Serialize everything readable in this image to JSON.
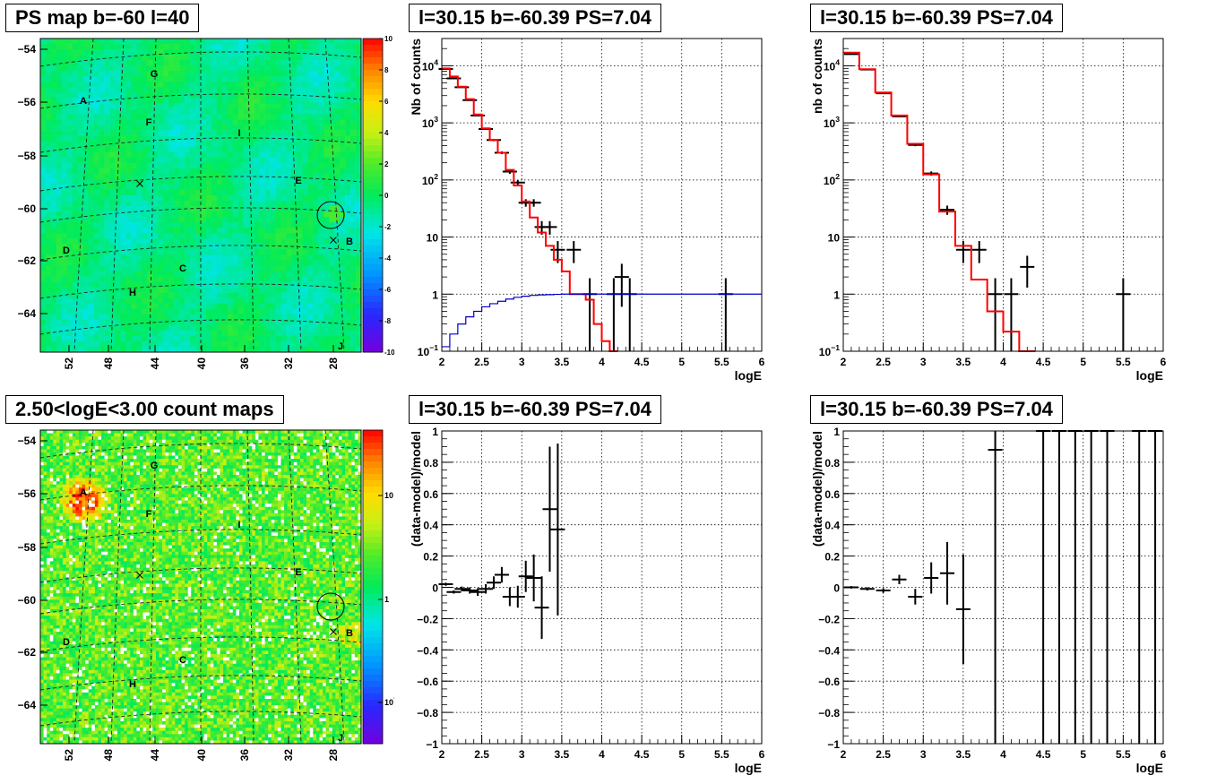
{
  "maps": [
    {
      "title": "PS map b=-60 l=40",
      "yticks": [
        "-54",
        "-56",
        "-58",
        "-60",
        "-62",
        "-64"
      ],
      "xticks": [
        "52",
        "48",
        "44",
        "40",
        "36",
        "32",
        "28"
      ],
      "labels": [
        "A",
        "B",
        "C",
        "D",
        "E",
        "F",
        "G",
        "H",
        "I",
        "J"
      ],
      "colorbar": [
        "10",
        "8",
        "6",
        "4",
        "2",
        "0",
        "-2",
        "-4",
        "-6",
        "-8",
        "-10"
      ],
      "scale": "linear"
    },
    {
      "title": "2.50<logE<3.00 count maps",
      "yticks": [
        "-54",
        "-56",
        "-58",
        "-60",
        "-62",
        "-64"
      ],
      "xticks": [
        "52",
        "48",
        "44",
        "40",
        "36",
        "32",
        "28"
      ],
      "labels": [
        "A",
        "B",
        "C",
        "D",
        "E",
        "F",
        "G",
        "H",
        "I",
        "J"
      ],
      "colorbar": [
        "10",
        "1",
        "10^-1"
      ],
      "scale": "log"
    }
  ],
  "chart_data": [
    {
      "type": "line",
      "title": "l=30.15 b=-60.39 PS=7.04",
      "xlabel": "logE",
      "ylabel": "Nb of counts",
      "ylog": true,
      "xlim": [
        2,
        6
      ],
      "ylim": [
        0.1,
        30000
      ],
      "xticks": [
        "2",
        "2.5",
        "3",
        "3.5",
        "4",
        "4.5",
        "5",
        "5.5",
        "6"
      ],
      "yticks": [
        "10^-1",
        "1",
        "10",
        "10^2",
        "10^3",
        "10^4"
      ],
      "grid": true,
      "series": [
        {
          "color": "#000000",
          "style": "errorbar",
          "x": [
            2.05,
            2.15,
            2.25,
            2.35,
            2.45,
            2.55,
            2.65,
            2.75,
            2.85,
            2.95,
            3.05,
            3.15,
            3.25,
            3.35,
            3.45,
            3.65,
            3.85,
            4.15,
            4.25,
            4.35,
            5.55
          ],
          "y": [
            8800,
            6000,
            4200,
            2500,
            1350,
            780,
            500,
            300,
            140,
            90,
            40,
            40,
            15,
            15,
            6,
            6,
            1,
            1,
            2,
            1,
            1
          ],
          "yerr_lo": [
            90,
            80,
            65,
            50,
            35,
            28,
            22,
            17,
            12,
            9,
            6,
            6,
            4,
            4,
            2.5,
            2.5,
            0.9,
            0.9,
            1.4,
            0.9,
            0.9
          ],
          "yerr_hi": [
            90,
            80,
            65,
            50,
            35,
            28,
            22,
            17,
            12,
            9,
            6,
            6,
            4,
            4,
            2.5,
            2.5,
            0.9,
            0.9,
            1.4,
            0.9,
            0.9
          ]
        },
        {
          "color": "#ff0000",
          "style": "step",
          "edges": [
            2.0,
            2.1,
            2.2,
            2.3,
            2.4,
            2.5,
            2.6,
            2.7,
            2.8,
            2.9,
            3.0,
            3.1,
            3.2,
            3.3,
            3.4,
            3.5,
            3.6,
            3.7,
            3.8,
            3.9,
            4.0,
            4.1,
            4.2
          ],
          "values": [
            9000,
            6500,
            4300,
            2600,
            1400,
            800,
            500,
            300,
            150,
            80,
            42,
            22,
            12,
            7,
            4,
            2.5,
            1,
            1,
            0.8,
            0.3,
            0.15,
            0.1
          ]
        },
        {
          "color": "#0000cc",
          "style": "step",
          "edges": [
            2.0,
            2.1,
            2.2,
            2.3,
            2.4,
            2.5,
            2.6,
            2.7,
            2.8,
            2.9,
            3.0,
            3.1,
            3.2,
            3.3,
            3.4,
            3.5,
            6.0
          ],
          "values": [
            0.12,
            0.2,
            0.3,
            0.4,
            0.5,
            0.6,
            0.68,
            0.75,
            0.82,
            0.88,
            0.92,
            0.95,
            0.97,
            0.98,
            0.99,
            1.0
          ]
        }
      ]
    },
    {
      "type": "line",
      "title": "l=30.15 b=-60.39 PS=7.04",
      "xlabel": "logE",
      "ylabel": "nb of counts",
      "ylog": true,
      "xlim": [
        2,
        6
      ],
      "ylim": [
        0.1,
        30000
      ],
      "xticks": [
        "2",
        "2.5",
        "3",
        "3.5",
        "4",
        "4.5",
        "5",
        "5.5",
        "6"
      ],
      "yticks": [
        "10^-1",
        "1",
        "10",
        "10^2",
        "10^3",
        "10^4"
      ],
      "grid": true,
      "series": [
        {
          "color": "#000000",
          "style": "errorbar",
          "x": [
            2.1,
            2.3,
            2.5,
            2.7,
            2.9,
            3.1,
            3.3,
            3.5,
            3.7,
            3.9,
            4.1,
            4.3,
            5.5
          ],
          "y": [
            16000,
            8600,
            3300,
            1300,
            410,
            130,
            30,
            6,
            6,
            1,
            1,
            3,
            1
          ],
          "yerr_lo": [
            126,
            93,
            57,
            36,
            20,
            11,
            5.5,
            2.5,
            2.5,
            0.9,
            0.9,
            1.7,
            0.9
          ],
          "yerr_hi": [
            126,
            93,
            57,
            36,
            20,
            11,
            5.5,
            2.5,
            2.5,
            0.9,
            0.9,
            1.7,
            0.9
          ]
        },
        {
          "color": "#ff0000",
          "style": "step",
          "edges": [
            2.0,
            2.2,
            2.4,
            2.6,
            2.8,
            3.0,
            3.2,
            3.4,
            3.6,
            3.8,
            4.0,
            4.2,
            4.4
          ],
          "values": [
            17000,
            8700,
            3400,
            1350,
            430,
            125,
            28,
            7,
            1.8,
            0.5,
            0.22,
            0.1
          ]
        }
      ]
    },
    {
      "type": "scatter",
      "title": "l=30.15 b=-60.39 PS=7.04",
      "xlabel": "logE",
      "ylabel": "(data-model)/model",
      "ylog": false,
      "xlim": [
        2,
        6
      ],
      "ylim": [
        -1,
        1
      ],
      "xticks": [
        "2",
        "2.5",
        "3",
        "3.5",
        "4",
        "4.5",
        "5",
        "5.5",
        "6"
      ],
      "yticks": [
        "-1",
        "-0.8",
        "-0.6",
        "-0.4",
        "-0.2",
        "0",
        "0.2",
        "0.4",
        "0.6",
        "0.8",
        "1"
      ],
      "grid": true,
      "series": [
        {
          "color": "#000000",
          "style": "errorbar",
          "x": [
            2.05,
            2.15,
            2.25,
            2.35,
            2.45,
            2.55,
            2.65,
            2.75,
            2.85,
            2.95,
            3.05,
            3.15,
            3.25,
            3.35,
            3.45
          ],
          "y": [
            0.02,
            -0.03,
            -0.01,
            -0.02,
            -0.03,
            -0.01,
            0.03,
            0.08,
            -0.06,
            -0.06,
            0.07,
            0.06,
            -0.13,
            0.5,
            0.37
          ],
          "yerr_lo": [
            0.01,
            0.01,
            0.015,
            0.02,
            0.025,
            0.03,
            0.04,
            0.05,
            0.06,
            0.07,
            0.1,
            0.15,
            0.2,
            0.4,
            0.55
          ],
          "yerr_hi": [
            0.01,
            0.01,
            0.015,
            0.02,
            0.025,
            0.03,
            0.04,
            0.05,
            0.06,
            0.07,
            0.1,
            0.15,
            0.2,
            0.4,
            0.55
          ]
        }
      ]
    },
    {
      "type": "scatter",
      "title": "l=30.15 b=-60.39 PS=7.04",
      "xlabel": "logE",
      "ylabel": "(data-model)/model",
      "ylog": false,
      "xlim": [
        2,
        6
      ],
      "ylim": [
        -1,
        1
      ],
      "xticks": [
        "2",
        "2.5",
        "3",
        "3.5",
        "4",
        "4.5",
        "5",
        "5.5",
        "6"
      ],
      "yticks": [
        "-1",
        "-0.8",
        "-0.6",
        "-0.4",
        "-0.2",
        "0",
        "0.2",
        "0.4",
        "0.6",
        "0.8",
        "1"
      ],
      "grid": true,
      "series": [
        {
          "color": "#000000",
          "style": "errorbar",
          "x": [
            2.1,
            2.3,
            2.5,
            2.7,
            2.9,
            3.1,
            3.3,
            3.5,
            3.9,
            4.5,
            4.7,
            4.9,
            5.1,
            5.3,
            5.7,
            5.9
          ],
          "y": [
            0.0,
            -0.01,
            -0.02,
            0.05,
            -0.06,
            0.06,
            0.09,
            -0.14,
            0.88,
            1.0,
            1.0,
            1.0,
            1.0,
            1.0,
            1.0,
            1.0
          ],
          "yerr_lo": [
            0.008,
            0.01,
            0.015,
            0.03,
            0.05,
            0.1,
            0.2,
            0.35,
            2.0,
            2.0,
            2.0,
            2.0,
            2.0,
            2.0,
            2.0,
            2.0
          ],
          "yerr_hi": [
            0.008,
            0.01,
            0.015,
            0.03,
            0.05,
            0.1,
            0.2,
            0.35,
            2.0,
            2.0,
            2.0,
            2.0,
            2.0,
            2.0,
            2.0,
            2.0
          ]
        }
      ]
    }
  ]
}
